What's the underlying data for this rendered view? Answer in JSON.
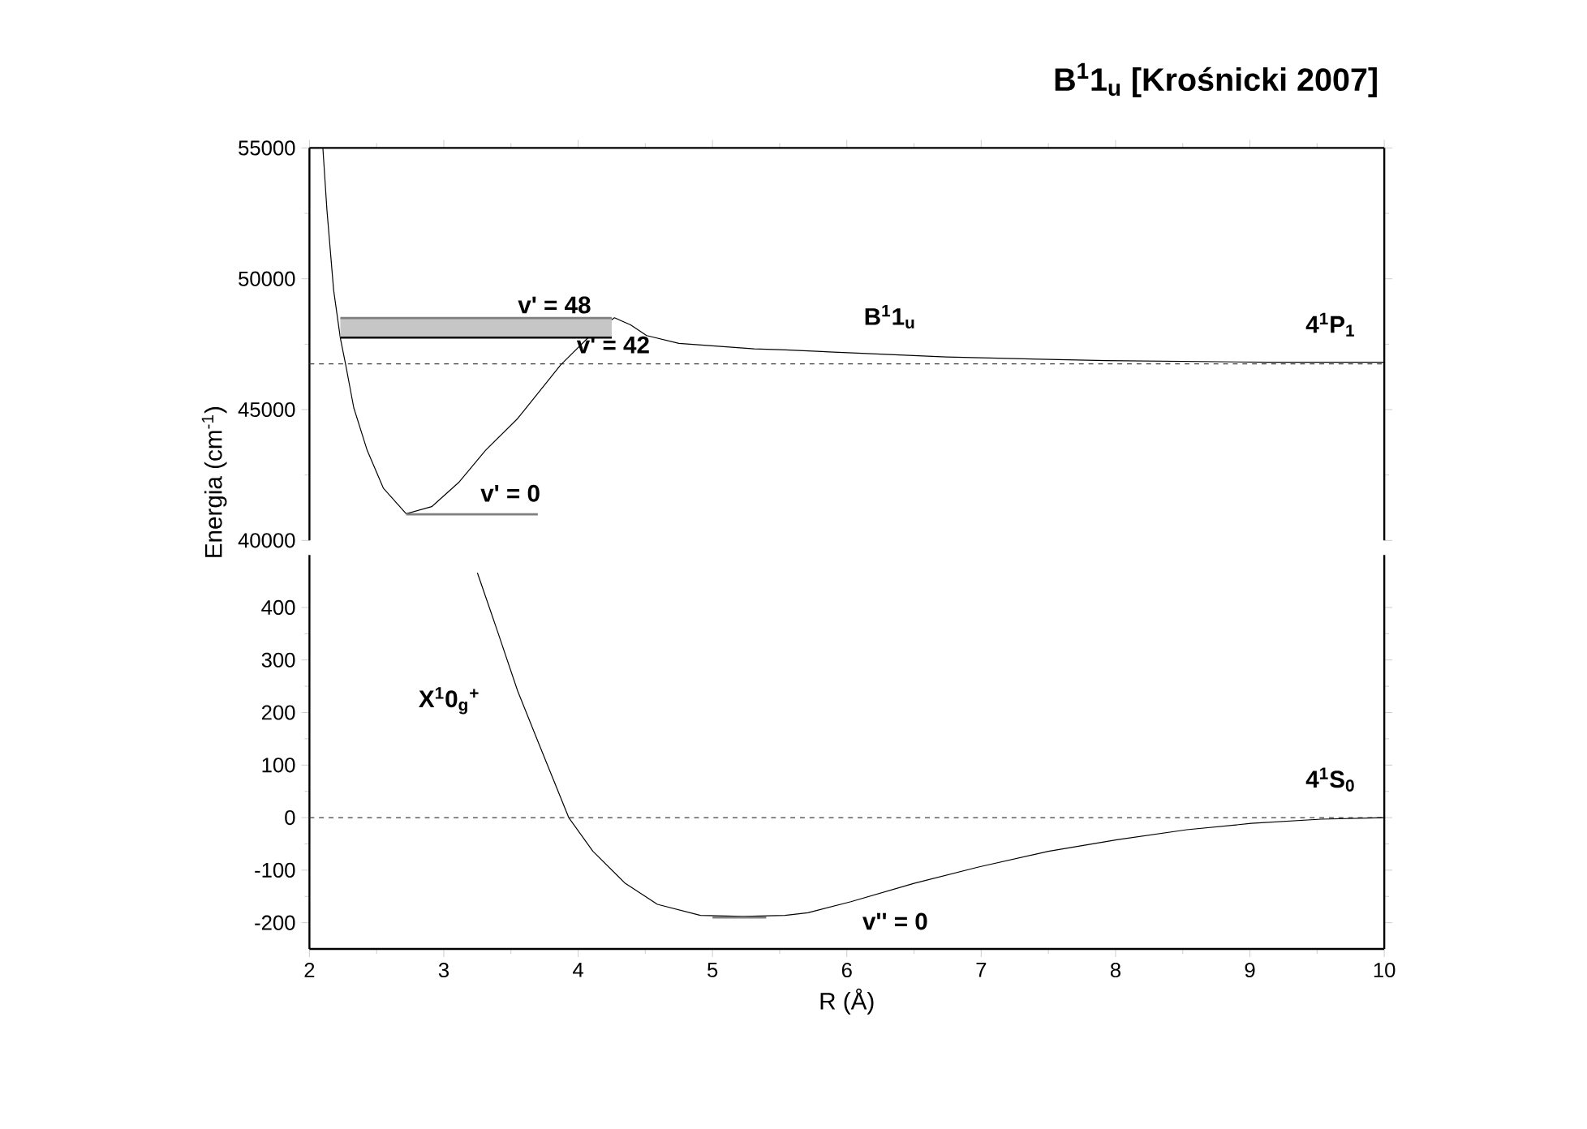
{
  "chart_data": [
    {
      "type": "line",
      "title": "B$^{1}$1$_{u}$  [Krośnicki 2007]",
      "ylabel": "Energia (cm$^{-1}$)",
      "xlim": [
        2,
        10
      ],
      "ylim": [
        40000,
        55000
      ],
      "xticks": [
        2,
        3,
        4,
        5,
        6,
        7,
        8,
        9,
        10
      ],
      "yticks": [
        40000,
        45000,
        50000,
        55000
      ],
      "tick_labels": "y",
      "line_style": "solid",
      "marker": "none",
      "series": [
        {
          "color": "#000000",
          "x": [
            2.1,
            2.13,
            2.18,
            2.23,
            2.27,
            2.33,
            2.43,
            2.55,
            2.72,
            2.91,
            3.11,
            3.31,
            3.55,
            3.87,
            4.09,
            4.27,
            4.39,
            4.51,
            4.75,
            5.31,
            5.54,
            6.74,
            7.93,
            9.13,
            10
          ],
          "values": [
            55000,
            52640,
            49570,
            47730,
            46710,
            45070,
            43440,
            42000,
            41020,
            41290,
            42210,
            43440,
            44660,
            46710,
            47830,
            48510,
            48240,
            47830,
            47530,
            47320,
            47280,
            47010,
            46870,
            46810,
            46810
          ]
        },
        {
          "color": "#808080",
          "x": [
            2.23,
            4.25
          ],
          "values": [
            48500,
            48500
          ],
          "lower": [
            47750,
            47750
          ],
          "upper": [
            48500,
            48500
          ]
        },
        {
          "color": "#808080",
          "x": [
            2.72,
            3.7
          ],
          "values": [
            41000,
            41000
          ]
        }
      ],
      "ref_lines": [
        {
          "axis": "y",
          "value": 46750,
          "line_style": "dashed",
          "color": "#404040"
        }
      ],
      "annotations": [
        "v' = 48",
        {
          "text": "v' = 42",
          "x": 4.25,
          "y": 47750
        },
        "v' = 0",
        "B$^{1}$1$_{u}$",
        "4$^{1}$P$_{1}$"
      ]
    },
    {
      "type": "line",
      "xlabel": "R (Å)",
      "xlim": [
        2,
        10
      ],
      "ylim": [
        -250,
        500
      ],
      "xticks": [
        2,
        3,
        4,
        5,
        6,
        7,
        8,
        9,
        10
      ],
      "yticks": [
        -200,
        -100,
        0,
        100,
        200,
        300,
        400
      ],
      "line_style": "solid",
      "marker": "none",
      "series": [
        {
          "color": "#000000",
          "x": [
            3.25,
            3.39,
            3.55,
            3.71,
            3.93,
            4.11,
            4.35,
            4.59,
            4.91,
            5.23,
            5.54,
            5.71,
            6.03,
            6.5,
            6.98,
            7.5,
            8.01,
            8.53,
            9.01,
            9.53,
            10
          ],
          "values": [
            466,
            362,
            241,
            139,
            0,
            -64,
            -125,
            -165,
            -186,
            -188,
            -186,
            -181,
            -160,
            -125,
            -94,
            -64,
            -42,
            -23,
            -11,
            -3,
            0
          ]
        },
        {
          "color": "#808080",
          "x": [
            5.0,
            5.4
          ],
          "values": [
            -190,
            -190
          ]
        }
      ],
      "ref_lines": [
        {
          "axis": "y",
          "value": 0,
          "line_style": "dashed",
          "color": "#404040"
        }
      ],
      "annotations": [
        "X$^{1}$0$_{g}$$^{+}$",
        "v'' = 0",
        "4$^{1}$S$_{0}$"
      ]
    }
  ]
}
